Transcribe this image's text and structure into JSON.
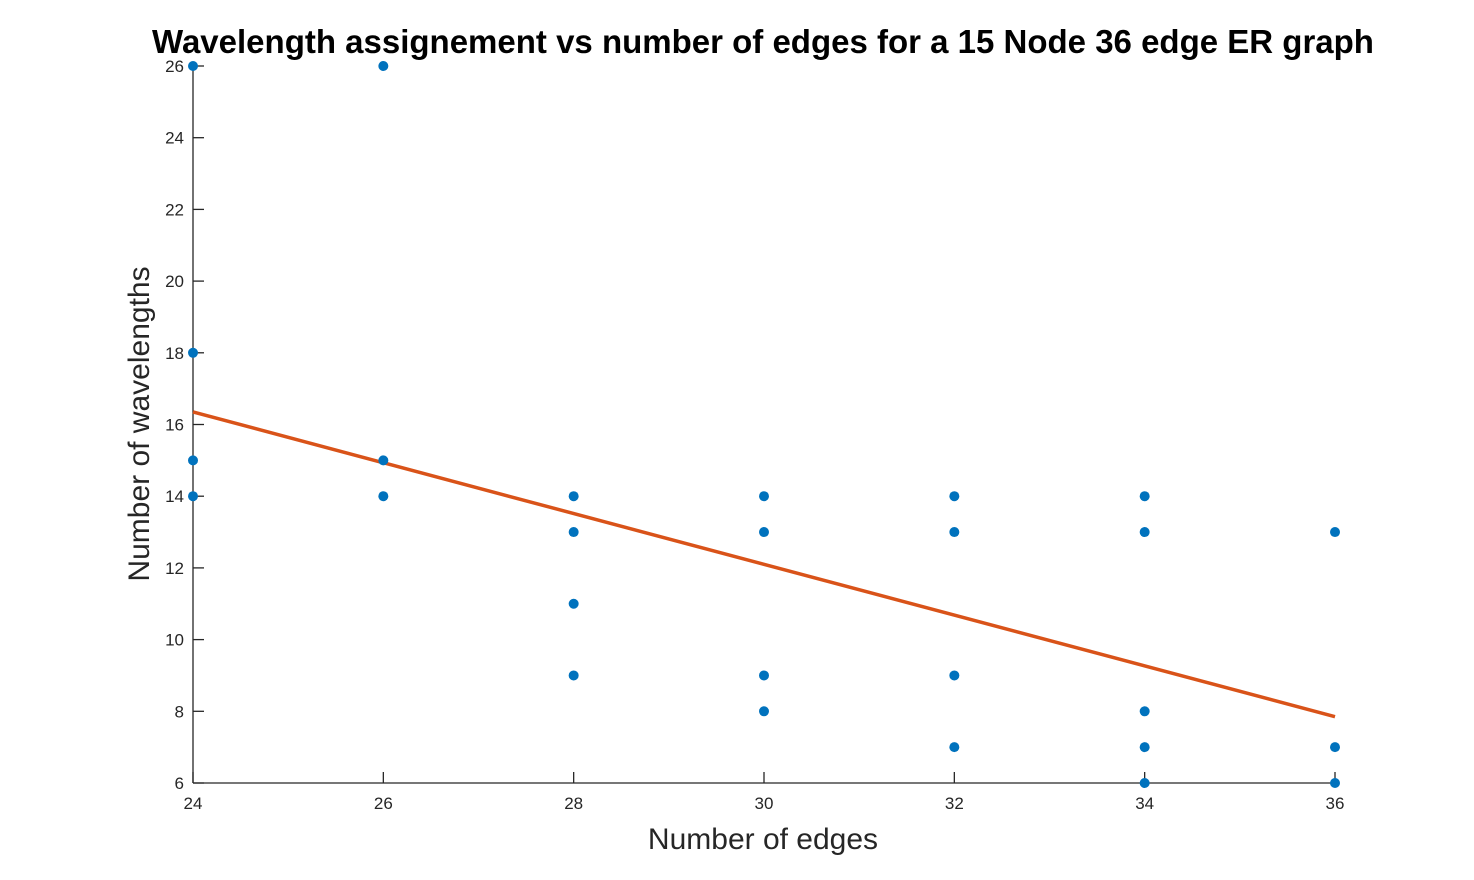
{
  "chart_data": {
    "type": "scatter",
    "title": "Wavelength assignement vs number of edges for a 15 Node 36 edge ER graph",
    "xlabel": "Number of edges",
    "ylabel": "Number of wavelengths",
    "xlim": [
      24,
      36
    ],
    "ylim": [
      6,
      26
    ],
    "xticks": [
      "24",
      "26",
      "28",
      "30",
      "32",
      "34",
      "36"
    ],
    "yticks": [
      "6",
      "8",
      "10",
      "12",
      "14",
      "16",
      "18",
      "20",
      "22",
      "24",
      "26"
    ],
    "grid": false,
    "legend": "none",
    "colors": {
      "points": "#0072BD",
      "fit_line": "#D95319",
      "axes": "#262626"
    },
    "series": [
      {
        "type": "scatter",
        "points": [
          {
            "x": 24,
            "y": 26
          },
          {
            "x": 24,
            "y": 18
          },
          {
            "x": 24,
            "y": 15
          },
          {
            "x": 24,
            "y": 14
          },
          {
            "x": 26,
            "y": 26
          },
          {
            "x": 26,
            "y": 15
          },
          {
            "x": 26,
            "y": 14
          },
          {
            "x": 28,
            "y": 14
          },
          {
            "x": 28,
            "y": 13
          },
          {
            "x": 28,
            "y": 11
          },
          {
            "x": 28,
            "y": 9
          },
          {
            "x": 30,
            "y": 14
          },
          {
            "x": 30,
            "y": 13
          },
          {
            "x": 30,
            "y": 9
          },
          {
            "x": 30,
            "y": 8
          },
          {
            "x": 32,
            "y": 14
          },
          {
            "x": 32,
            "y": 13
          },
          {
            "x": 32,
            "y": 9
          },
          {
            "x": 32,
            "y": 7
          },
          {
            "x": 34,
            "y": 14
          },
          {
            "x": 34,
            "y": 13
          },
          {
            "x": 34,
            "y": 8
          },
          {
            "x": 34,
            "y": 7
          },
          {
            "x": 34,
            "y": 6
          },
          {
            "x": 36,
            "y": 13
          },
          {
            "x": 36,
            "y": 7
          },
          {
            "x": 36,
            "y": 6
          }
        ]
      },
      {
        "type": "line",
        "points": [
          {
            "x": 24,
            "y": 16.35
          },
          {
            "x": 36,
            "y": 7.85
          }
        ]
      }
    ]
  }
}
